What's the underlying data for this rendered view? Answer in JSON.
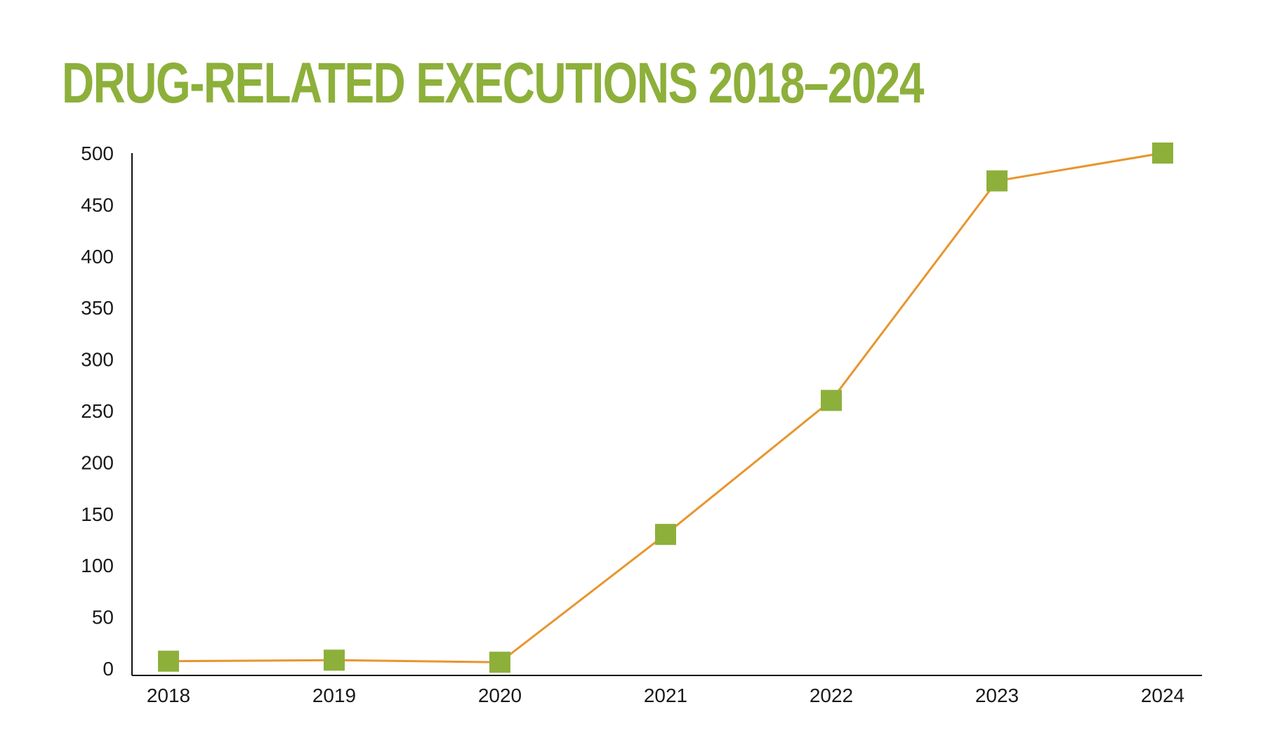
{
  "colors": {
    "title": "#8DB03B",
    "line": "#E8952E",
    "marker": "#8DB03B",
    "axis": "#111111",
    "text": "#1a1a1a"
  },
  "chart_data": {
    "type": "line",
    "title": "DRUG-RELATED EXECUTIONS 2018–2024",
    "xlabel": "",
    "ylabel": "",
    "categories": [
      "2018",
      "2019",
      "2020",
      "2021",
      "2022",
      "2023",
      "2024"
    ],
    "series": [
      {
        "values": [
          7,
          8,
          6,
          130,
          260,
          473,
          500
        ],
        "marker": "square"
      }
    ],
    "ylim": [
      0,
      500
    ],
    "yticks": [
      0,
      50,
      100,
      150,
      200,
      250,
      300,
      350,
      400,
      450,
      500
    ],
    "grid": false,
    "legend": "none"
  }
}
